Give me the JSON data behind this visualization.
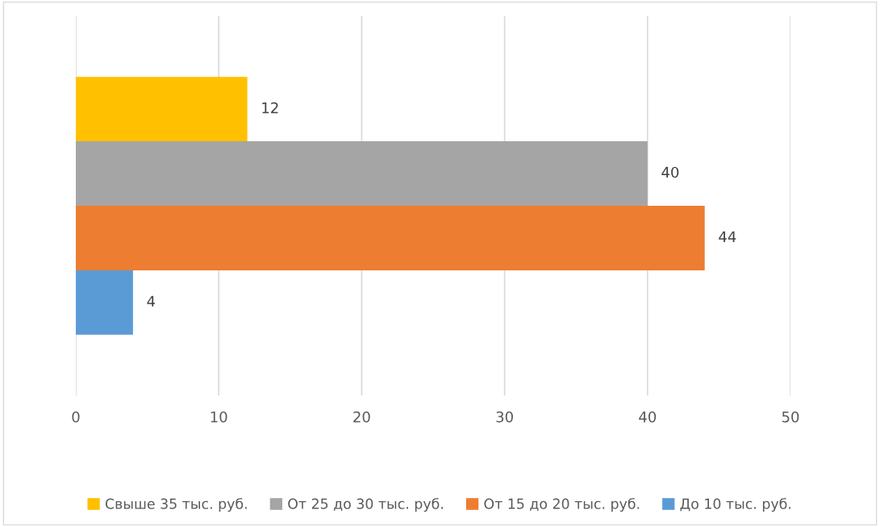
{
  "chart_data": {
    "type": "bar",
    "orientation": "horizontal",
    "categories": [
      null
    ],
    "series": [
      {
        "name": "Свыше 35 тыс. руб.",
        "color": "#ffc000",
        "values": [
          12
        ]
      },
      {
        "name": "От 25 до 30 тыс. руб.",
        "color": "#a5a5a5",
        "values": [
          40
        ]
      },
      {
        "name": "От 15 до 20 тыс. руб.",
        "color": "#ed7d31",
        "values": [
          44
        ]
      },
      {
        "name": "До 10 тыс. руб.",
        "color": "#5b9bd5",
        "values": [
          4
        ]
      }
    ],
    "xlim": [
      0,
      50
    ],
    "xticks": [
      0,
      10,
      20,
      30,
      40,
      50
    ],
    "grid": "x",
    "legend": "bottom",
    "data_labels": true
  }
}
